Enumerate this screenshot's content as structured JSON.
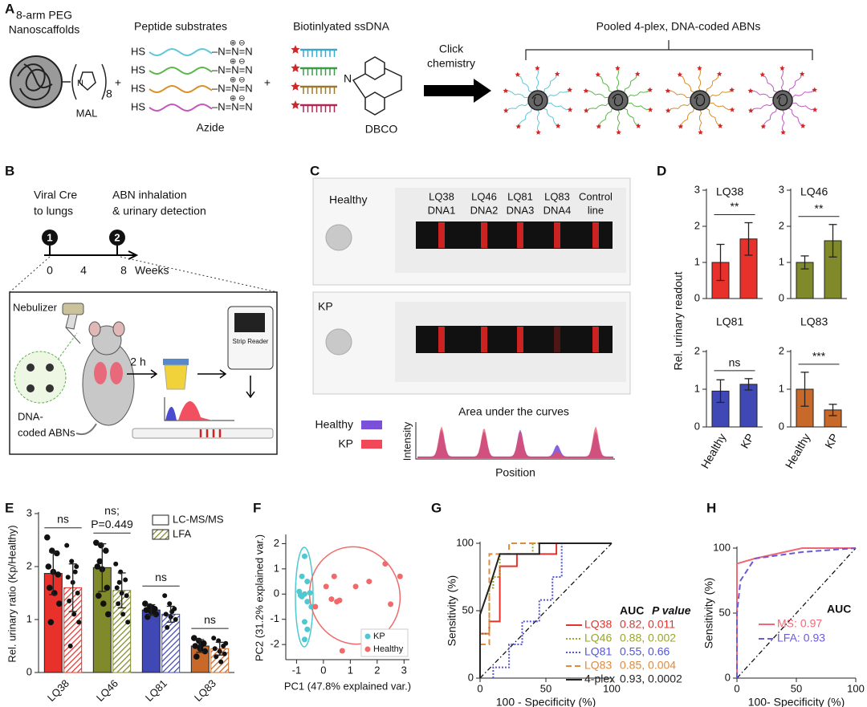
{
  "figure": {
    "panel_labels": [
      "A",
      "B",
      "C",
      "D",
      "E",
      "F",
      "G",
      "H"
    ],
    "a": {
      "scaffold": [
        "8-arm PEG",
        "Nanoscaffolds"
      ],
      "mal": "MAL",
      "subscript": "8",
      "plus": [
        "+",
        "+"
      ],
      "peptide_title": "Peptide substrates",
      "hs": [
        "HS",
        "HS",
        "HS",
        "HS"
      ],
      "azide_groups": [
        "–N=N=N",
        "–N=N=N",
        "–N=N=N",
        "–N=N=N"
      ],
      "charges": [
        "⊕ ⊖",
        "⊕ ⊖",
        "⊕ ⊖",
        "⊕ ⊖"
      ],
      "azide": "Azide",
      "dna_title": "Biotinlyated ssDNA",
      "dbco_n": "N",
      "dbco": "DBCO",
      "click": [
        "Click",
        "chemistry"
      ],
      "pooled": "Pooled 4-plex, DNA-coded  ABNs"
    },
    "b": {
      "step1": [
        "Viral Cre",
        "to lungs"
      ],
      "step2": [
        "ABN inhalation",
        "& urinary detection"
      ],
      "markers": [
        1,
        2
      ],
      "ticks": [
        0,
        4,
        8
      ],
      "weeks": "Weeks",
      "nebulizer": "Nebulizer",
      "time": "2 h",
      "reader": "Strip Reader",
      "abns": [
        "DNA-",
        "coded  ABNs"
      ]
    },
    "c": {
      "strips": [
        "Healthy",
        "KP"
      ],
      "lanes": [
        [
          "LQ38",
          "DNA1"
        ],
        [
          "LQ46",
          "DNA2"
        ],
        [
          "LQ81",
          "DNA3"
        ],
        [
          "LQ83",
          "DNA4"
        ],
        [
          "Control",
          "line"
        ]
      ],
      "legend": [
        "Healthy",
        "KP"
      ],
      "y_label": "Intensity",
      "title": "Area under the curves",
      "x_label": "Position"
    },
    "d": {
      "y_label": "Rel. urinary readout"
    }
  },
  "chart_data": [
    {
      "type": "bar",
      "title": "LQ38",
      "categories": [
        null,
        null
      ],
      "values": [
        1.0,
        1.65
      ],
      "errors": [
        0.5,
        0.45
      ],
      "color": "#e8312a",
      "ylim": [
        0,
        3
      ],
      "yticks": [
        0,
        1,
        2,
        3
      ],
      "annotation": "**"
    },
    {
      "type": "bar",
      "title": "LQ46",
      "categories": [
        null,
        null
      ],
      "values": [
        1.0,
        1.6
      ],
      "errors": [
        0.18,
        0.45
      ],
      "color": "#808a2a",
      "ylim": [
        0,
        3
      ],
      "yticks": [
        0,
        1,
        2,
        3
      ],
      "annotation": "**"
    },
    {
      "type": "bar",
      "title": "LQ81",
      "categories": [
        "Healthy",
        "KP"
      ],
      "values": [
        0.95,
        1.13
      ],
      "errors": [
        0.3,
        0.15
      ],
      "color": "#3f48b4",
      "ylim": [
        0,
        2
      ],
      "yticks": [
        0,
        1,
        2
      ],
      "annotation": "ns"
    },
    {
      "type": "bar",
      "title": "LQ83",
      "categories": [
        "Healthy",
        "KP"
      ],
      "values": [
        1.0,
        0.45
      ],
      "errors": [
        0.45,
        0.15
      ],
      "color": "#c8692a",
      "ylim": [
        0,
        2
      ],
      "yticks": [
        0,
        1,
        2
      ],
      "annotation": "***"
    },
    {
      "type": "grouped_bar",
      "y_label": "Rel. urinary ratio (Kp/Healthy)",
      "categories": [
        "LQ38",
        "LQ46",
        "LQ81",
        "LQ83"
      ],
      "colors": [
        "#e8312a",
        "#808a2a",
        "#3f48b4",
        "#c8692a"
      ],
      "ylim": [
        0,
        3
      ],
      "yticks": [
        0,
        1,
        2,
        3
      ],
      "series": [
        {
          "name": "LC-MS/MS",
          "style": "solid",
          "values": [
            1.87,
            1.98,
            1.18,
            0.5
          ],
          "errors": [
            0.4,
            0.45,
            0.1,
            0.12
          ],
          "points": [
            [
              2.55,
              2.3,
              2.25,
              2.0,
              1.9,
              1.85,
              1.6,
              1.5,
              1.3,
              0.95
            ],
            [
              2.45,
              2.4,
              2.3,
              2.0,
              1.95,
              1.6,
              1.45,
              1.3,
              1.1,
              2.1
            ],
            [
              1.3,
              1.25,
              1.2,
              1.18,
              1.15,
              1.1,
              1.05,
              1.22
            ],
            [
              0.65,
              0.6,
              0.55,
              0.5,
              0.45,
              0.4,
              0.3,
              0.52
            ]
          ]
        },
        {
          "name": "LFA",
          "style": "hatched",
          "values": [
            1.6,
            1.55,
            1.1,
            0.45
          ],
          "errors": [
            0.45,
            0.33,
            0.15,
            0.12
          ],
          "points": [
            [
              2.4,
              2.1,
              2.0,
              1.8,
              1.7,
              1.5,
              1.35,
              1.1,
              0.95,
              0.5,
              1.9
            ],
            [
              2.05,
              1.9,
              1.75,
              1.6,
              1.5,
              1.45,
              1.3,
              1.1,
              0.95,
              1.7
            ],
            [
              1.45,
              1.3,
              1.2,
              1.1,
              1.05,
              1.0,
              0.85,
              1.15
            ],
            [
              0.65,
              0.6,
              0.5,
              0.45,
              0.4,
              0.35,
              0.3,
              0.2,
              0.55
            ]
          ]
        }
      ],
      "annotations": [
        [
          "ns"
        ],
        [
          "ns;",
          "P=0.449"
        ],
        [
          "ns"
        ],
        [
          "ns"
        ]
      ]
    },
    {
      "type": "scatter",
      "x_label": "PC1 (47.8% explained var.)",
      "y_label": "PC2 (31.2% explained var.)",
      "xlim": [
        -1.4,
        3.2
      ],
      "xticks": [
        -1,
        0,
        1,
        2,
        3
      ],
      "ylim": [
        -2.6,
        2.3
      ],
      "yticks": [
        -2,
        -1,
        0,
        1,
        2
      ],
      "legend": "lower right",
      "series": [
        {
          "name": "KP",
          "color": "#4fc8d0",
          "x": [
            -0.7,
            -0.8,
            -0.6,
            -0.9,
            -0.7,
            -0.5,
            -0.8,
            -0.6,
            -0.7,
            -0.6,
            -0.7,
            -0.45,
            -0.85
          ],
          "values": [
            1.5,
            0.7,
            0.5,
            0.1,
            0.0,
            0.05,
            -0.1,
            -0.3,
            -1.1,
            -1.4,
            -1.8,
            -0.5,
            -0.05
          ]
        },
        {
          "name": "Healthy",
          "color": "#f06a6a",
          "x": [
            -0.3,
            0.1,
            0.4,
            0.3,
            0.5,
            0.6,
            1.2,
            1.7,
            2.3,
            2.5,
            2.85,
            1.5,
            0.7
          ],
          "values": [
            -0.5,
            0.3,
            0.7,
            -0.2,
            -0.3,
            -0.25,
            0.3,
            0.5,
            1.2,
            -0.4,
            0.7,
            -1.85,
            -2.25
          ]
        }
      ]
    },
    {
      "type": "line",
      "x_label": "100 - Specificity (%)",
      "y_label": "Sensitivity (%)",
      "xlim": [
        0,
        100
      ],
      "xticks": [
        0,
        50,
        100
      ],
      "ylim": [
        0,
        100
      ],
      "yticks": [
        0,
        50,
        100
      ],
      "legend_header": [
        "AUC",
        "P value"
      ],
      "series": [
        {
          "name": "LQ38",
          "color": "#e8312a",
          "dash": "solid",
          "stats": "0.82, 0.011",
          "x": [
            0,
            0,
            7,
            7,
            15,
            15,
            28,
            28,
            58,
            58,
            100
          ],
          "values": [
            25,
            33,
            33,
            42,
            42,
            83,
            83,
            92,
            92,
            100,
            100
          ]
        },
        {
          "name": "LQ46",
          "color": "#9aa62a",
          "dash": "dotted",
          "stats": "0.88, 0.002",
          "x": [
            0,
            7,
            7,
            10,
            10,
            15,
            15,
            40,
            40,
            100
          ],
          "values": [
            33,
            33,
            67,
            67,
            75,
            75,
            92,
            92,
            100,
            100
          ]
        },
        {
          "name": "LQ81",
          "color": "#5555dd",
          "dash": "dotted",
          "stats": "0.55, 0.66",
          "x": [
            10,
            10,
            22,
            22,
            32,
            32,
            45,
            45,
            55,
            55,
            62,
            62,
            100
          ],
          "values": [
            0,
            8,
            8,
            25,
            25,
            42,
            42,
            58,
            58,
            75,
            75,
            100,
            100
          ]
        },
        {
          "name": "LQ83",
          "color": "#e08a3a",
          "dash": "dashed",
          "stats": "0.85, 0.004",
          "x": [
            0,
            7,
            7,
            22,
            22,
            100
          ],
          "values": [
            25,
            25,
            92,
            92,
            100,
            100
          ]
        },
        {
          "name": "4-plex",
          "color": "#222222",
          "dash": "solid",
          "stats": "0.93, 0.0002",
          "x": [
            0,
            0,
            8,
            15,
            45,
            45,
            100
          ],
          "values": [
            0,
            47,
            70,
            92,
            92,
            100,
            100
          ]
        }
      ]
    },
    {
      "type": "line",
      "x_label": "100- Specificity (%)",
      "y_label": "Sensitivity (%)",
      "xlim": [
        0,
        100
      ],
      "xticks": [
        0,
        50,
        100
      ],
      "ylim": [
        0,
        100
      ],
      "yticks": [
        0,
        50,
        100
      ],
      "legend_header": [
        "AUC"
      ],
      "series": [
        {
          "name": "MS:",
          "color": "#f06878",
          "dash": "solid",
          "stats": "0.97",
          "x": [
            0,
            0,
            15,
            55,
            100
          ],
          "values": [
            0,
            88,
            92,
            100,
            100
          ]
        },
        {
          "name": "LFA:",
          "color": "#6a5ad8",
          "dash": "dashed",
          "stats": "0.93",
          "x": [
            0,
            0,
            3,
            15,
            55,
            100
          ],
          "values": [
            0,
            50,
            75,
            92,
            97,
            100
          ]
        }
      ]
    }
  ]
}
